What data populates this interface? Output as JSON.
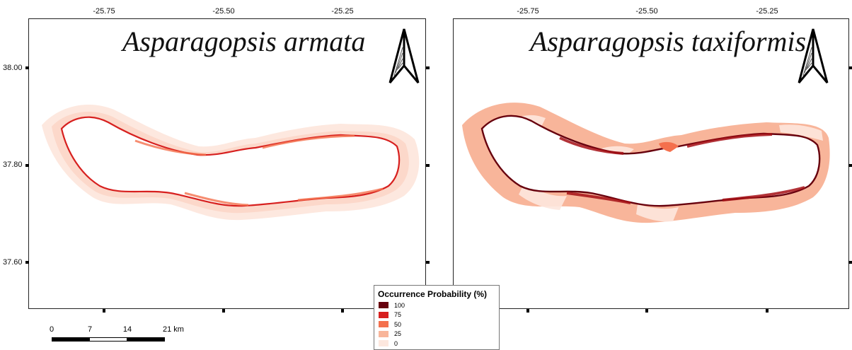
{
  "maps": [
    {
      "title": "Asparagopsis armata",
      "lon_ticks": [
        "-25.75",
        "-25.50",
        "-25.25"
      ],
      "lat_ticks": [
        "38.00",
        "37.80",
        "37.60"
      ],
      "dominant_probability": "0-25 with 75-100 along coastline"
    },
    {
      "title": "Asparagopsis taxiformis",
      "lon_ticks": [
        "-25.75",
        "-25.50",
        "-25.25"
      ],
      "dominant_probability": "25 offshore band with 50-100 along coastline"
    }
  ],
  "legend": {
    "title": "Occurrence Probability (%)",
    "items": [
      {
        "label": "100",
        "color": "#67000d"
      },
      {
        "label": "75",
        "color": "#d7201f"
      },
      {
        "label": "50",
        "color": "#f4704d"
      },
      {
        "label": "25",
        "color": "#f8b59a"
      },
      {
        "label": "0",
        "color": "#fde7de"
      }
    ]
  },
  "scale_bar": {
    "labels": [
      "0",
      "7",
      "14",
      "21 km"
    ]
  },
  "icons": [
    "north-arrow-icon",
    "north-arrow-icon"
  ]
}
